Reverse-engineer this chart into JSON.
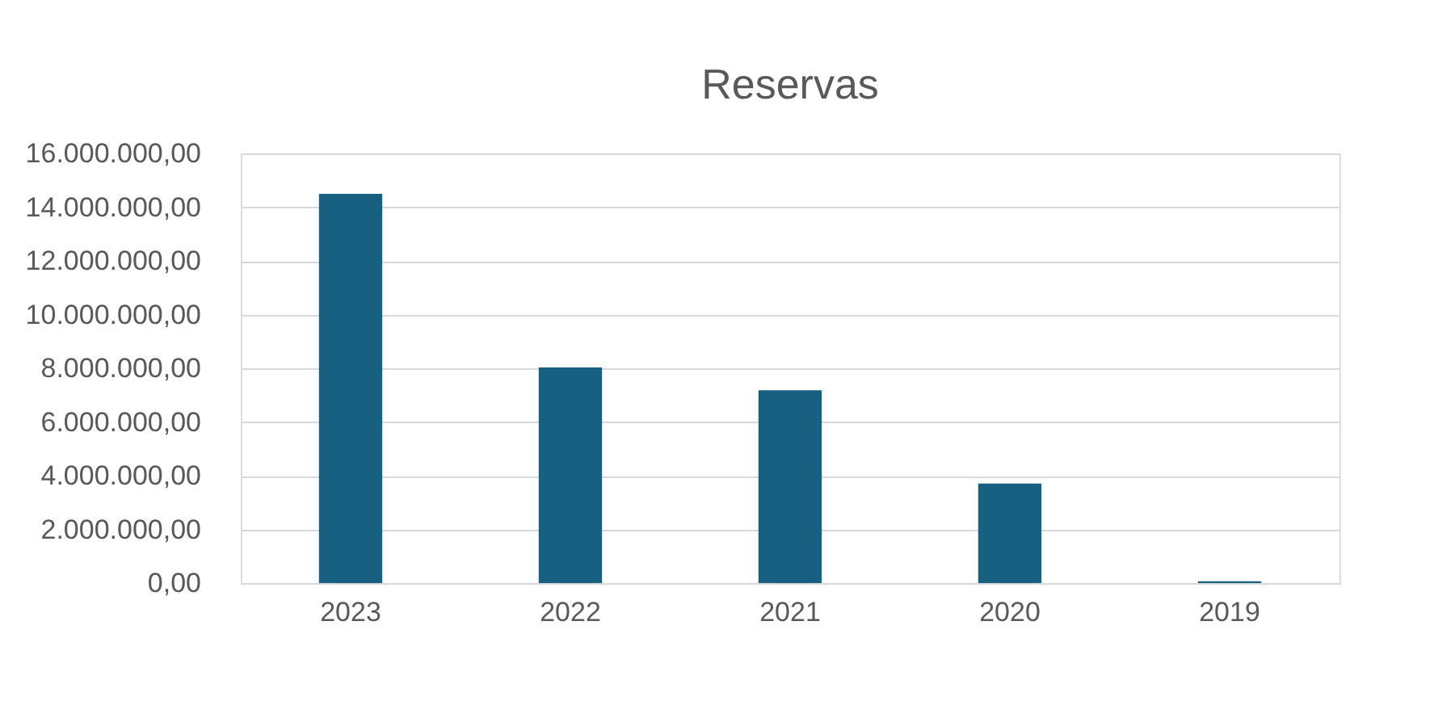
{
  "chart_data": {
    "type": "bar",
    "title": "Reservas",
    "categories": [
      "2023",
      "2022",
      "2021",
      "2020",
      "2019"
    ],
    "values": [
      14500000,
      8030000,
      7180000,
      3710000,
      70000
    ],
    "color": "#176082",
    "ylim": [
      0,
      16000000
    ],
    "yticks": [
      {
        "value": 0,
        "label": "0,00"
      },
      {
        "value": 2000000,
        "label": "2.000.000,00"
      },
      {
        "value": 4000000,
        "label": "4.000.000,00"
      },
      {
        "value": 6000000,
        "label": "6.000.000,00"
      },
      {
        "value": 8000000,
        "label": "8.000.000,00"
      },
      {
        "value": 10000000,
        "label": "10.000.000,00"
      },
      {
        "value": 12000000,
        "label": "12.000.000,00"
      },
      {
        "value": 14000000,
        "label": "14.000.000,00"
      },
      {
        "value": 16000000,
        "label": "16.000.000,00"
      }
    ],
    "grid": "y"
  }
}
